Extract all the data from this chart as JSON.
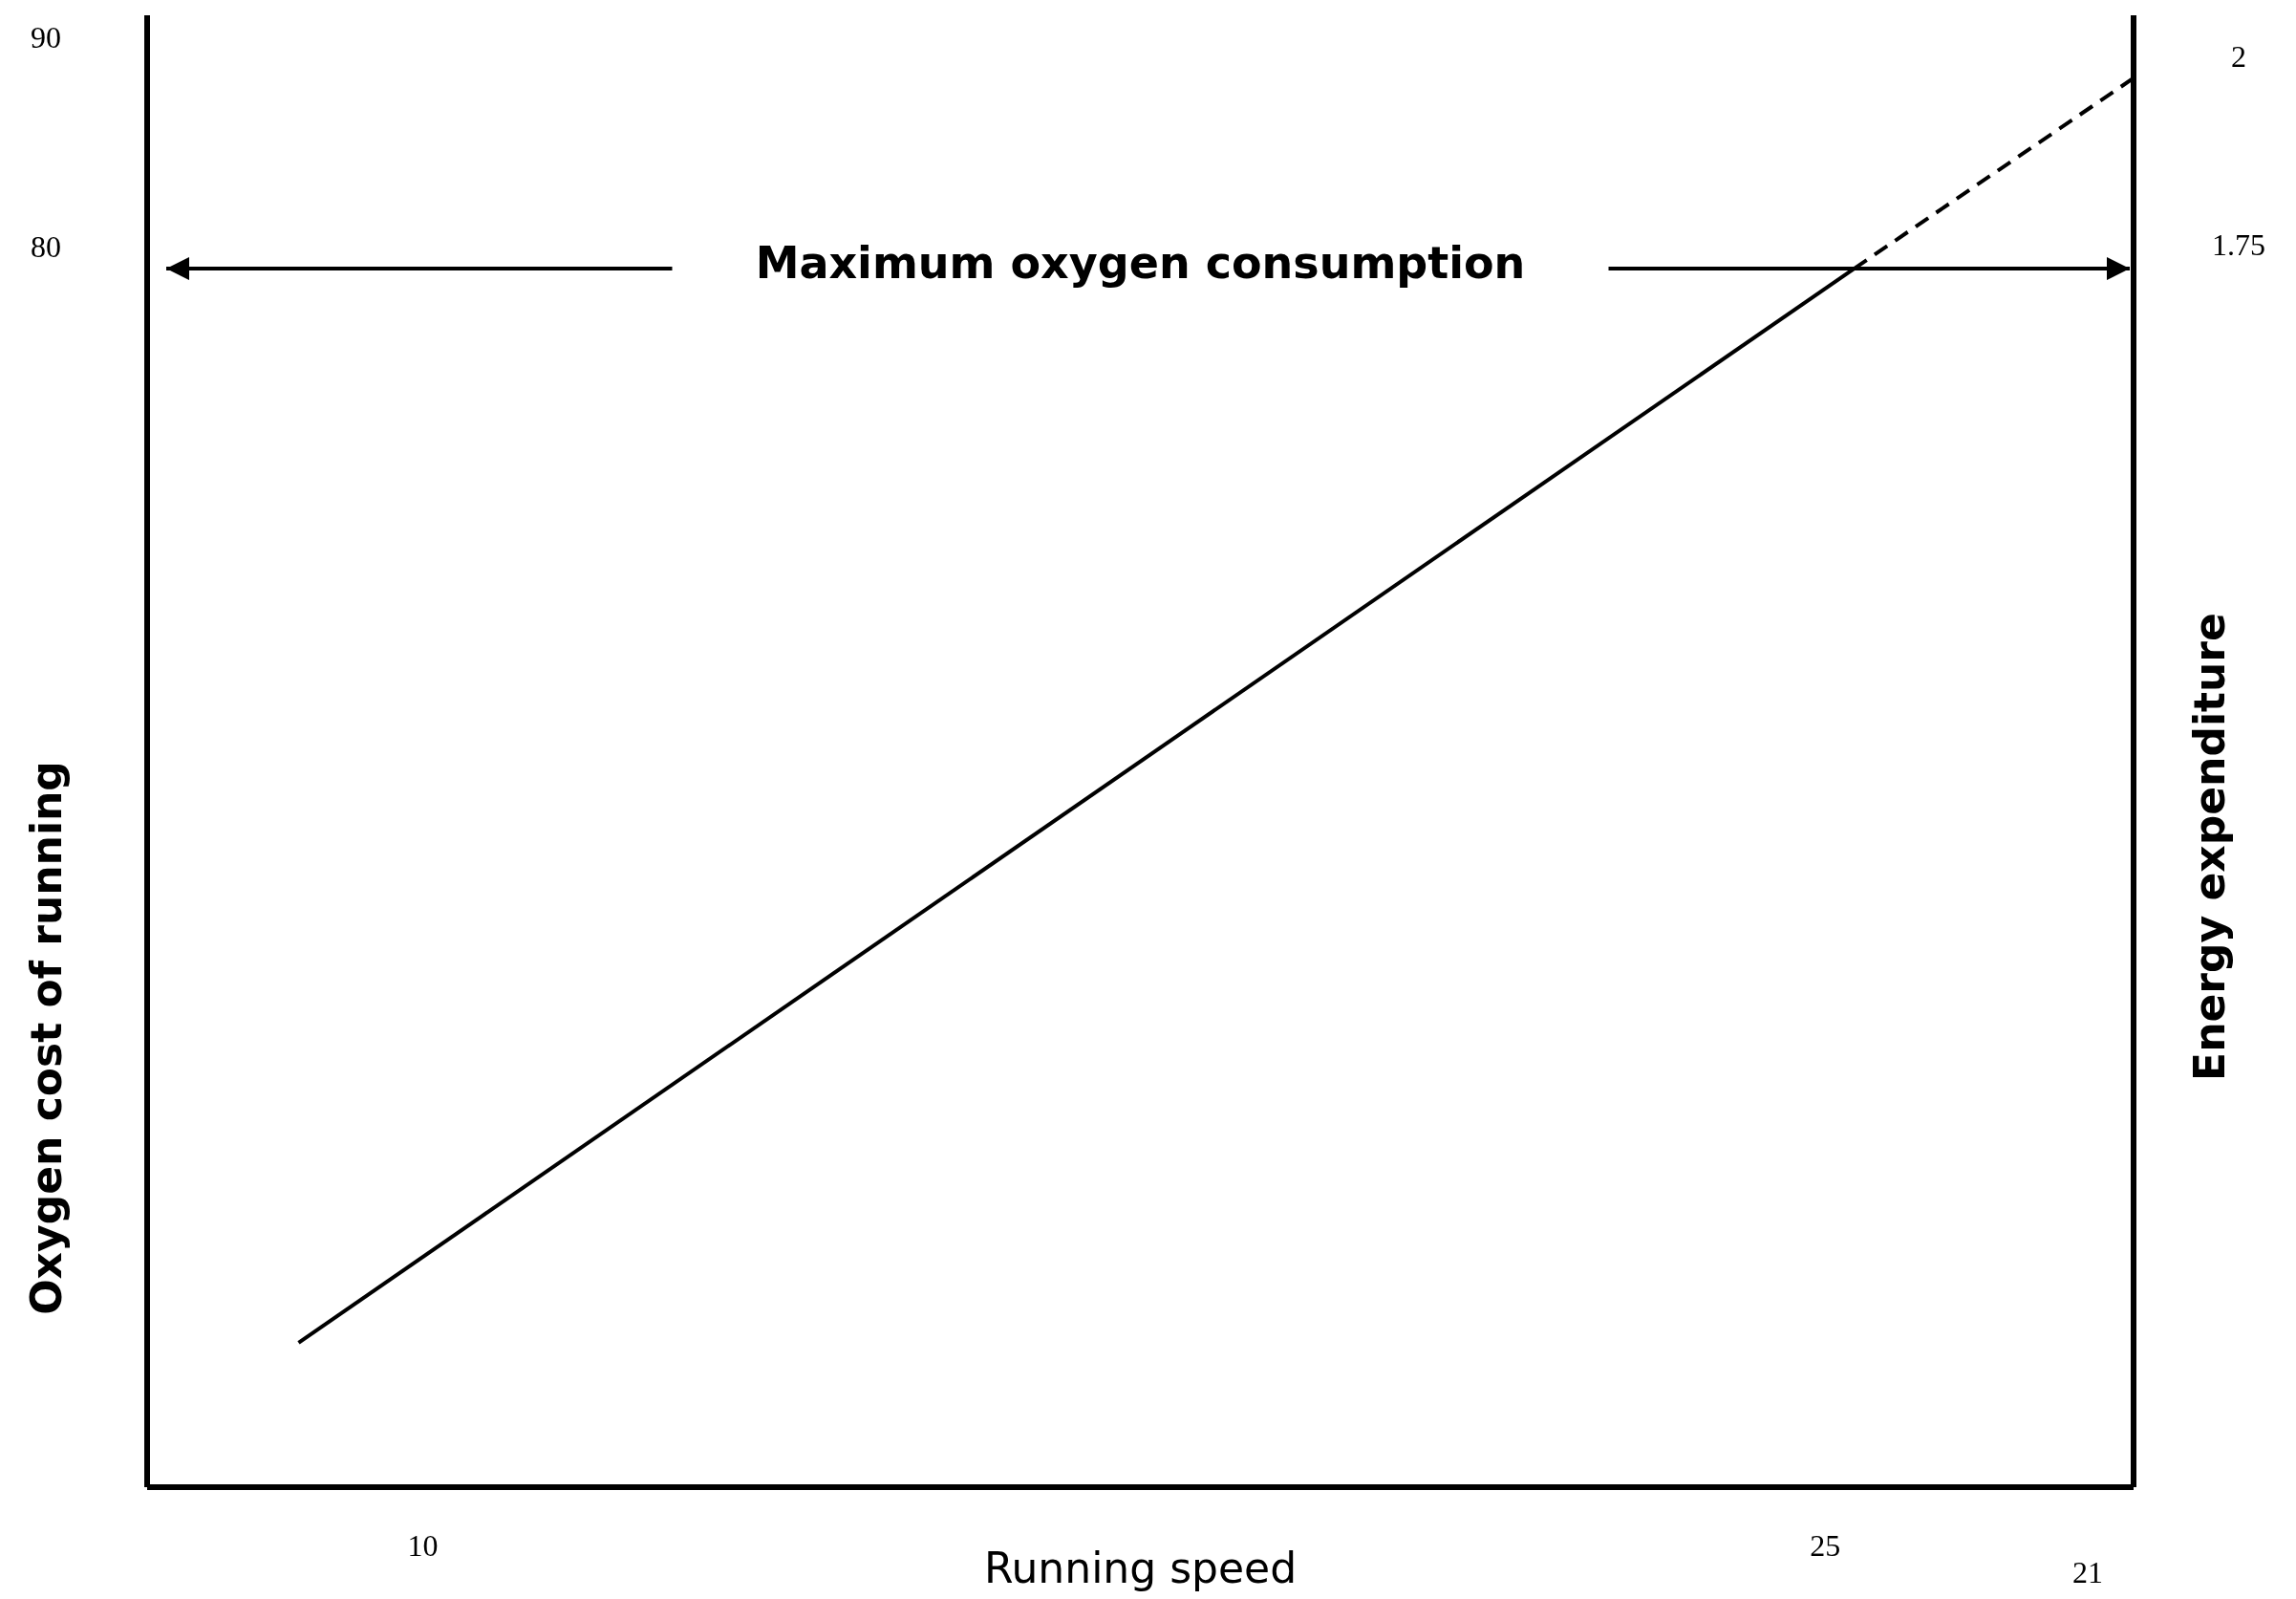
{
  "chart_data": {
    "type": "line",
    "xlabel": "Running speed",
    "ylabel": "Oxygen cost of running",
    "y2label": "Energy expenditure",
    "xlim": [
      7.05,
      28.3
    ],
    "xticks": [
      10,
      25
    ],
    "annotations": [
      "21"
    ],
    "ylim": [
      20.9,
      91.2
    ],
    "yticks": [
      80,
      90
    ],
    "y2lim": [
      0.1,
      2.06
    ],
    "y2ticks": [
      1.75,
      2
    ],
    "series": [
      {
        "color": "#000000",
        "line_style": "solid",
        "x": [
          8.67,
          25.31
        ],
        "values": [
          27.8,
          79.1
        ]
      },
      {
        "color": "#000000",
        "line_style": "dashed",
        "x": [
          25.31,
          28.3
        ],
        "values": [
          79.1,
          88.2
        ]
      }
    ],
    "ref_lines": [
      {
        "axis": "y",
        "value": 79.1,
        "label": "Maximum oxygen consumption",
        "color": "#000000"
      }
    ],
    "grid": false
  }
}
